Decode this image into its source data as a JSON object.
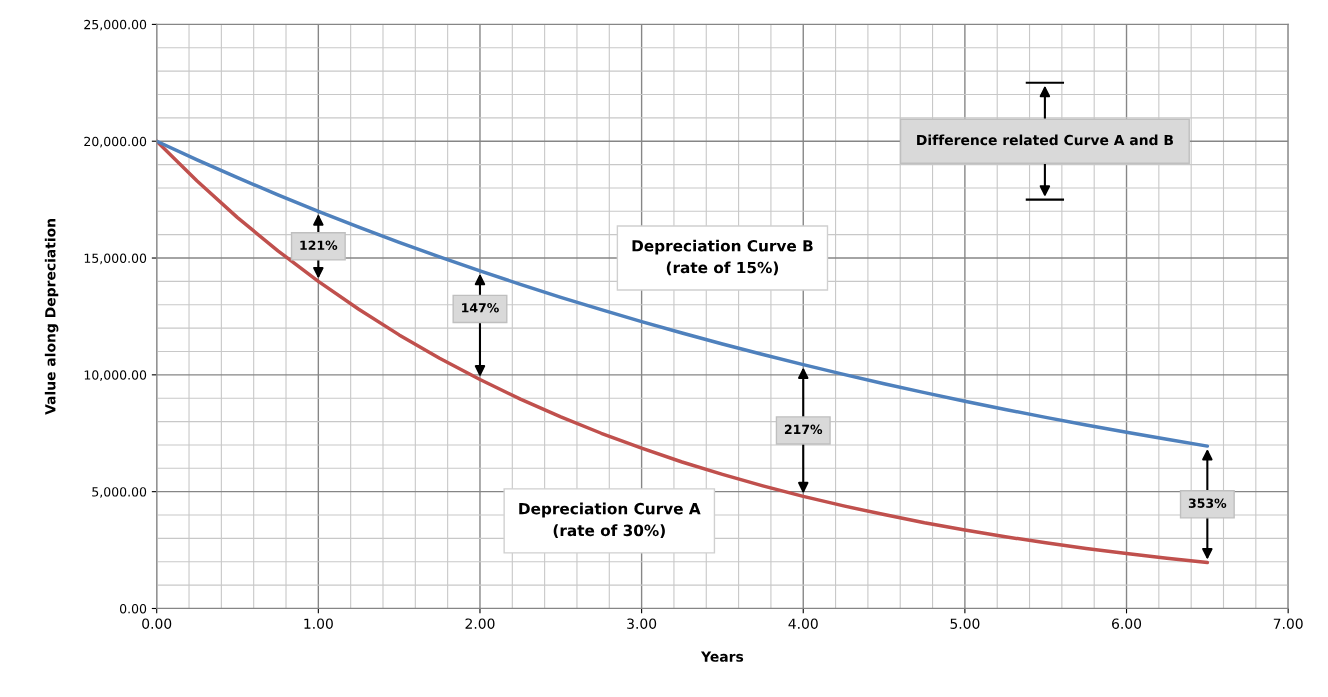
{
  "chart_data": {
    "type": "line",
    "xlabel": "Years",
    "ylabel": "Value along Depreciation",
    "x": [
      0,
      0.25,
      0.5,
      0.75,
      1,
      1.25,
      1.5,
      1.75,
      2,
      2.25,
      2.5,
      2.75,
      3,
      3.25,
      3.5,
      3.75,
      4,
      4.25,
      4.5,
      4.75,
      5,
      5.25,
      5.5,
      5.75,
      6,
      6.25,
      6.5
    ],
    "series": [
      {
        "name": "Depreciation Curve A\n(rate of 30%)",
        "color": "#c0504d",
        "values": [
          20000,
          18300,
          16730,
          15310,
          14000,
          12810,
          11710,
          10710,
          9800,
          8960,
          8200,
          7500,
          6860,
          6270,
          5740,
          5250,
          4800,
          4390,
          4020,
          3670,
          3360,
          3070,
          2810,
          2570,
          2350,
          2150,
          1970
        ]
      },
      {
        "name": "Depreciation Curve B\n(rate of 15%)",
        "color": "#4f81bd",
        "values": [
          20000,
          19200,
          18440,
          17700,
          17000,
          16320,
          15670,
          15050,
          14450,
          13870,
          13320,
          12790,
          12280,
          11790,
          11320,
          10870,
          10440,
          10020,
          9620,
          9240,
          8870,
          8520,
          8180,
          7850,
          7540,
          7240,
          6950
        ]
      }
    ],
    "xlim": [
      0,
      7
    ],
    "ylim": [
      0,
      25000
    ],
    "xticks": [
      {
        "value": 0,
        "label": "0.00"
      },
      {
        "value": 1,
        "label": "1.00"
      },
      {
        "value": 2,
        "label": "2.00"
      },
      {
        "value": 3,
        "label": "3.00"
      },
      {
        "value": 4,
        "label": "4.00"
      },
      {
        "value": 5,
        "label": "5.00"
      },
      {
        "value": 6,
        "label": "6.00"
      },
      {
        "value": 7,
        "label": "7.00"
      }
    ],
    "yticks": [
      {
        "value": 0,
        "label": "0.00"
      },
      {
        "value": 5000,
        "label": "5,000.00"
      },
      {
        "value": 10000,
        "label": "10,000.00"
      },
      {
        "value": 15000,
        "label": "15,000.00"
      },
      {
        "value": 20000,
        "label": "20,000.00"
      },
      {
        "value": 25000,
        "label": "25,000.00"
      }
    ],
    "grid": true,
    "legend": false,
    "marker": "none",
    "line_style": "solid",
    "annotations": [
      {
        "text": "121%",
        "x": 1,
        "y": 17000
      },
      {
        "text": "147%",
        "x": 2,
        "y": 14450
      },
      {
        "text": "217%",
        "x": 4,
        "y": 10440
      },
      {
        "text": "353%",
        "x": 6.5,
        "y": 6950
      },
      "Difference related Curve A and B"
    ]
  }
}
